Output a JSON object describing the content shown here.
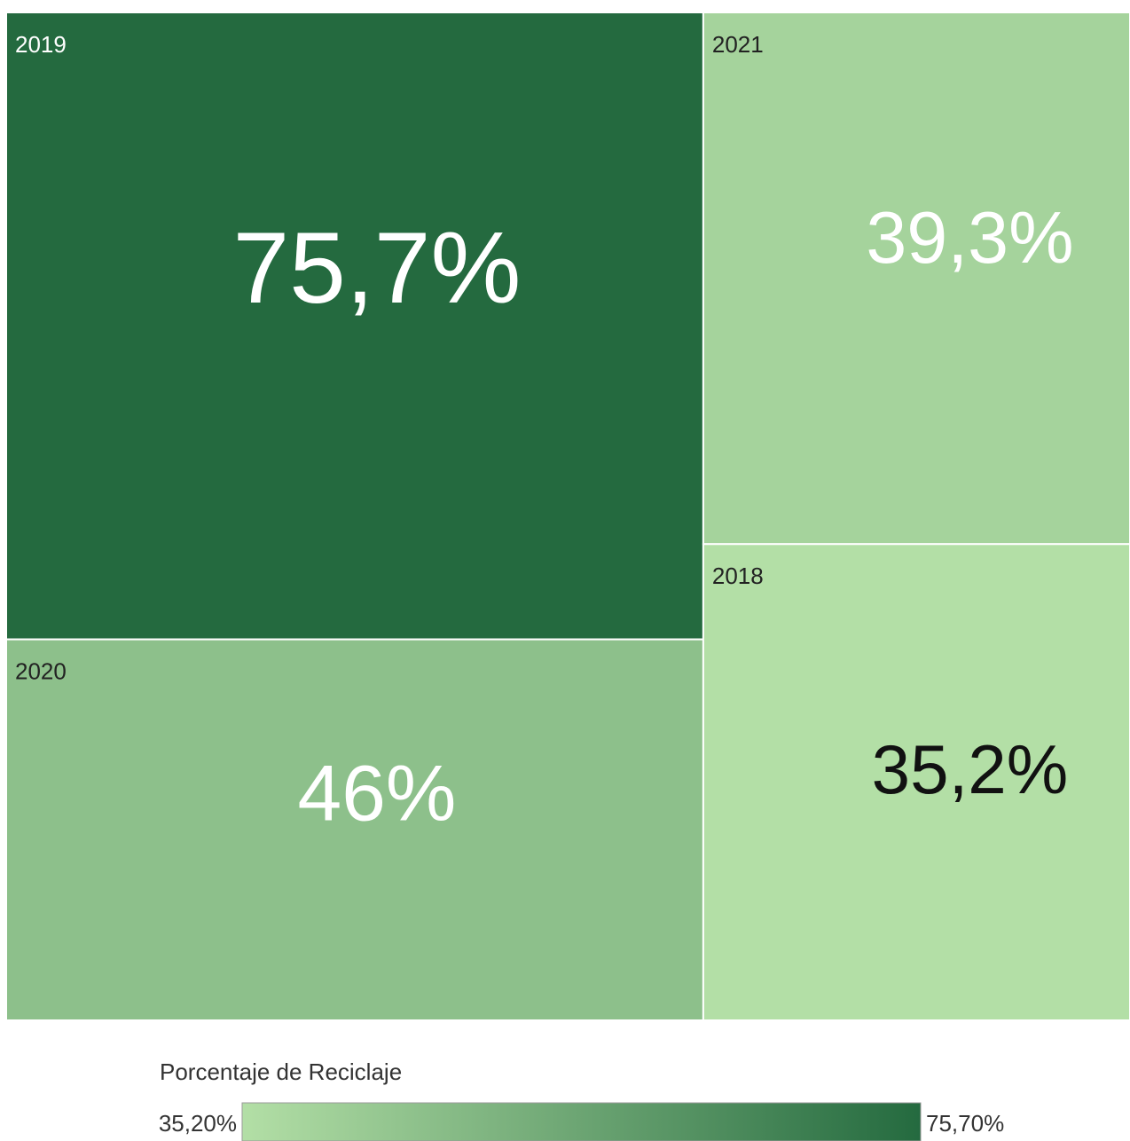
{
  "chart_data": {
    "type": "treemap",
    "categories": [
      "2019",
      "2020",
      "2021",
      "2018"
    ],
    "values": [
      75.7,
      46,
      39.3,
      35.2
    ],
    "value_labels": [
      "75,7%",
      "46%",
      "39,3%",
      "35,2%"
    ],
    "color_range": [
      "#b3dfa6",
      "#246a3f"
    ],
    "legend_title": "Porcentaje de Reciclaje",
    "colorbar_ticks": [
      {
        "value": 35.2,
        "label": "35,20%"
      },
      {
        "value": 75.7,
        "label": "75,70%"
      }
    ]
  }
}
